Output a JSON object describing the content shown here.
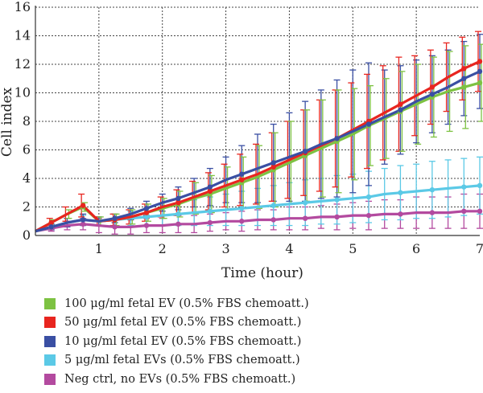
{
  "chart_data": {
    "type": "line",
    "xlabel": "Time (hour)",
    "ylabel": "Cell index",
    "xlim": [
      0,
      7
    ],
    "ylim": [
      0,
      16
    ],
    "xticks": [
      "1",
      "2",
      "3",
      "4",
      "5",
      "6",
      "7"
    ],
    "yticks": [
      "0",
      "2",
      "4",
      "6",
      "8",
      "10",
      "12",
      "14",
      "16"
    ],
    "grid": "dashed",
    "legend_position": "bottom",
    "x": [
      0,
      0.25,
      0.5,
      0.75,
      1,
      1.25,
      1.5,
      1.75,
      2,
      2.25,
      2.5,
      2.75,
      3,
      3.25,
      3.5,
      3.75,
      4,
      4.25,
      4.5,
      4.75,
      5,
      5.25,
      5.5,
      5.75,
      6,
      6.25,
      6.5,
      6.75,
      7
    ],
    "series": [
      {
        "name": "100 μg/ml fetal EV (0.5% FBS chemoatt.)",
        "color": "#7dc242",
        "values": [
          0.3,
          0.9,
          1.5,
          2.0,
          1.0,
          1.1,
          1.3,
          1.6,
          1.9,
          2.2,
          2.6,
          2.9,
          3.3,
          3.7,
          4.1,
          4.6,
          5.1,
          5.6,
          6.1,
          6.6,
          7.1,
          7.7,
          8.2,
          8.7,
          9.2,
          9.7,
          10.1,
          10.4,
          10.7
        ],
        "errors": [
          0.1,
          0.2,
          0.3,
          0.3,
          0.3,
          0.4,
          0.5,
          0.6,
          0.7,
          0.9,
          1.1,
          1.3,
          1.5,
          1.8,
          2.2,
          2.6,
          2.9,
          3.2,
          3.4,
          3.6,
          3.2,
          2.8,
          2.8,
          2.8,
          2.8,
          2.8,
          2.8,
          2.9,
          2.7
        ]
      },
      {
        "name": "50 μg/ml fetal EV (0.5% FBS chemoatt.)",
        "color": "#e8251f",
        "values": [
          0.3,
          0.9,
          1.5,
          2.1,
          1.0,
          1.1,
          1.3,
          1.6,
          2.0,
          2.3,
          2.7,
          3.1,
          3.5,
          3.9,
          4.3,
          4.8,
          5.3,
          5.8,
          6.3,
          6.8,
          7.4,
          8.0,
          8.6,
          9.2,
          9.8,
          10.4,
          11.1,
          11.7,
          12.2
        ],
        "errors": [
          0.1,
          0.3,
          0.5,
          0.8,
          0.3,
          0.4,
          0.5,
          0.6,
          0.7,
          0.9,
          1.1,
          1.3,
          1.5,
          1.8,
          2.1,
          2.4,
          2.7,
          3.0,
          3.2,
          3.4,
          3.3,
          3.3,
          3.3,
          3.3,
          2.8,
          2.6,
          2.4,
          2.2,
          2.1
        ]
      },
      {
        "name": "10 μg/ml fetal EV (0.5% FBS chemoatt.)",
        "color": "#3a4fa3",
        "values": [
          0.3,
          0.6,
          0.9,
          1.1,
          1.0,
          1.2,
          1.5,
          1.9,
          2.3,
          2.6,
          3.0,
          3.4,
          3.9,
          4.3,
          4.7,
          5.1,
          5.5,
          5.9,
          6.4,
          6.8,
          7.3,
          7.8,
          8.3,
          8.8,
          9.4,
          9.9,
          10.4,
          11.0,
          11.5
        ],
        "errors": [
          0.1,
          0.2,
          0.3,
          0.4,
          0.3,
          0.3,
          0.4,
          0.5,
          0.6,
          0.8,
          1.0,
          1.3,
          1.6,
          2.0,
          2.4,
          2.7,
          3.1,
          3.5,
          3.8,
          4.1,
          4.3,
          4.3,
          3.3,
          3.1,
          2.9,
          2.7,
          2.6,
          2.6,
          2.6
        ]
      },
      {
        "name": "5 μg/ml fetal EVs (0.5% FBS chemoatt.)",
        "color": "#5bc9e6",
        "values": [
          0.3,
          0.6,
          0.9,
          1.1,
          1.0,
          1.1,
          1.2,
          1.3,
          1.4,
          1.5,
          1.6,
          1.7,
          1.8,
          1.9,
          2.0,
          2.1,
          2.2,
          2.3,
          2.4,
          2.5,
          2.6,
          2.7,
          2.9,
          3.0,
          3.1,
          3.2,
          3.3,
          3.4,
          3.5
        ],
        "errors": [
          0.1,
          0.2,
          0.3,
          0.3,
          0.3,
          0.4,
          0.5,
          0.6,
          0.7,
          0.8,
          0.9,
          1.0,
          1.1,
          1.2,
          1.3,
          1.4,
          1.5,
          1.6,
          1.6,
          1.7,
          1.7,
          1.8,
          1.8,
          1.9,
          1.9,
          2.0,
          2.0,
          2.0,
          2.0
        ]
      },
      {
        "name": "Neg ctrl, no EVs (0.5% FBS chemoatt.)",
        "color": "#b34a9f",
        "values": [
          0.3,
          0.5,
          0.7,
          0.8,
          0.7,
          0.6,
          0.6,
          0.7,
          0.7,
          0.8,
          0.8,
          0.9,
          1.0,
          1.0,
          1.1,
          1.1,
          1.2,
          1.2,
          1.3,
          1.3,
          1.4,
          1.4,
          1.5,
          1.5,
          1.6,
          1.6,
          1.6,
          1.7,
          1.7
        ],
        "errors": [
          0.1,
          0.2,
          0.3,
          0.4,
          0.5,
          0.5,
          0.5,
          0.5,
          0.5,
          0.6,
          0.6,
          0.6,
          0.6,
          0.7,
          0.7,
          0.7,
          0.8,
          0.8,
          0.8,
          0.9,
          0.9,
          1.0,
          1.0,
          1.0,
          1.1,
          1.1,
          1.1,
          1.2,
          1.2
        ]
      }
    ]
  }
}
